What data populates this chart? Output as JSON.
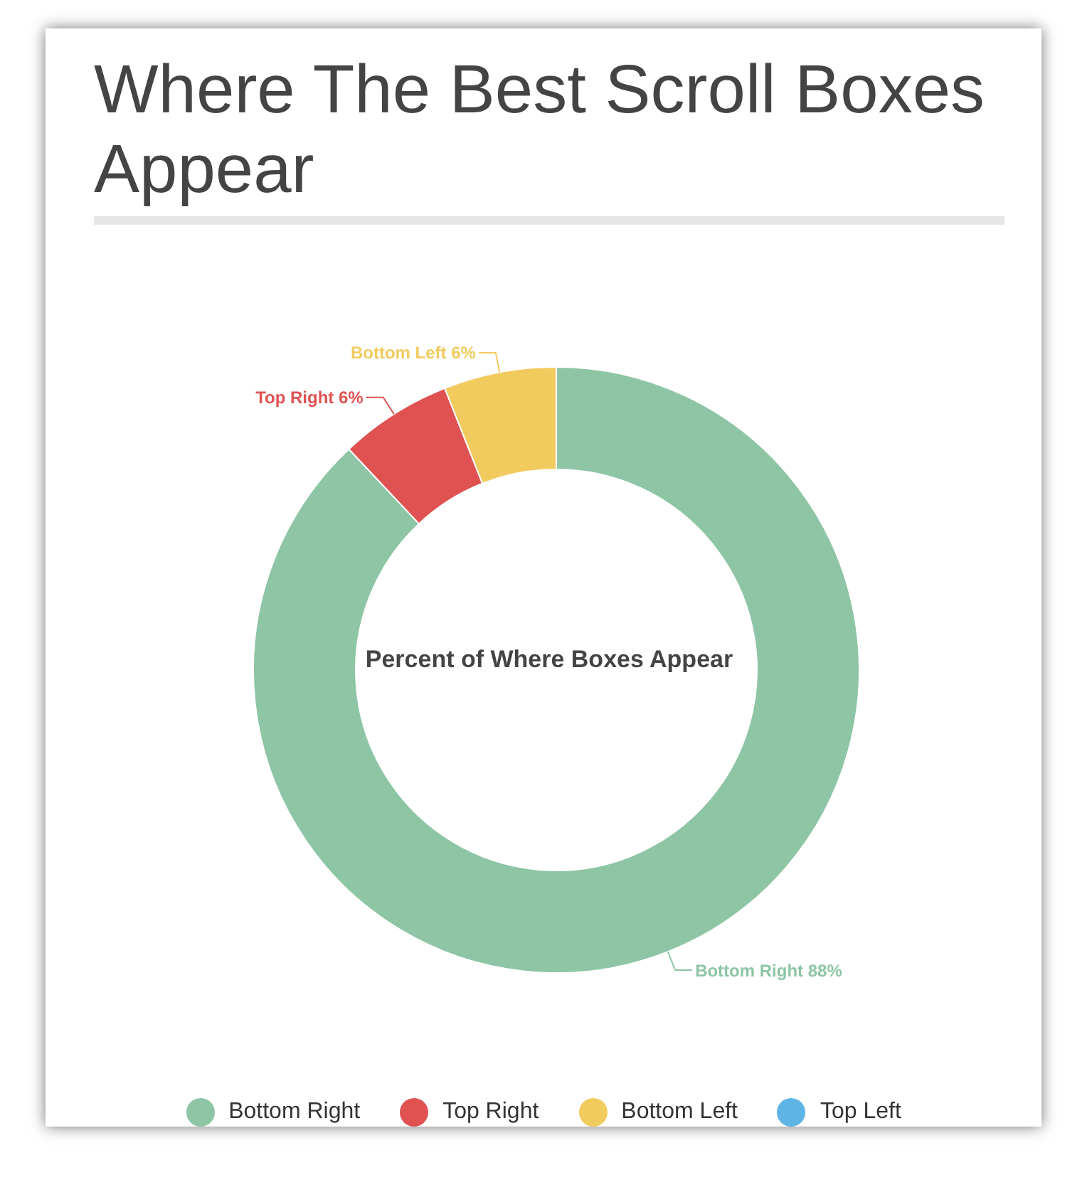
{
  "chart_data": {
    "type": "donut",
    "title": "Where The Best Scroll Boxes Appear",
    "subtitle": "Percent of Where Boxes Appear",
    "categories": [
      "Bottom Right",
      "Top Right",
      "Bottom Left",
      "Top Left"
    ],
    "values": [
      88,
      6,
      6,
      0
    ],
    "colors": [
      "#8dc5a5",
      "#e05252",
      "#f2cb5e",
      "#5fb4e6"
    ],
    "value_labels": [
      "Bottom Right 88%",
      "Top Right 6%",
      "Bottom Left 6%",
      null
    ],
    "legend": "bottom"
  }
}
